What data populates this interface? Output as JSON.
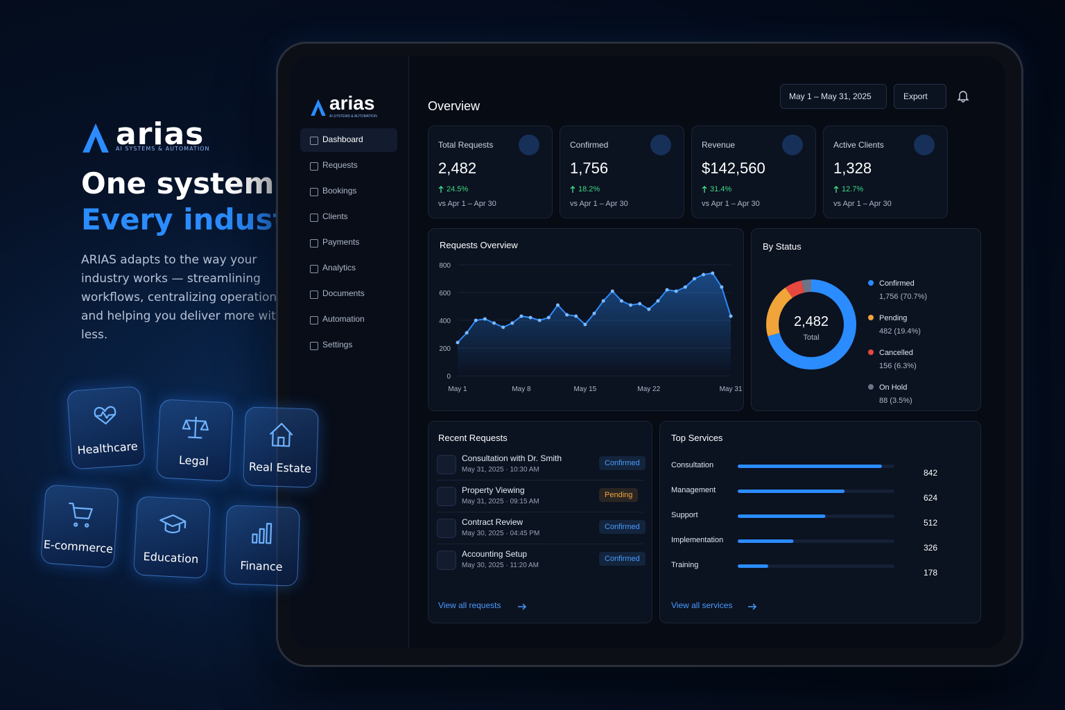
{
  "hero": {
    "logo": "arias",
    "logo_tagline": "AI SYSTEMS & AUTOMATION",
    "headline_1": "One system.",
    "headline_2": "Every industry.",
    "body": "ARIAS adapts to the way your industry works — streamlining workflows, centralizing operations and helping you deliver more with less.",
    "industries": [
      "Healthcare",
      "Legal",
      "Real Estate",
      "E-commerce",
      "Education",
      "Finance"
    ]
  },
  "dashboard": {
    "logo": "arias",
    "logo_tagline": "AI SYSTEMS & AUTOMATION",
    "nav": [
      "Dashboard",
      "Requests",
      "Bookings",
      "Clients",
      "Payments",
      "Analytics",
      "Documents",
      "Automation",
      "Settings"
    ],
    "page_title": "Overview",
    "date_range": "May 1 – May 31, 2025",
    "export": "Export",
    "kpis": [
      {
        "label": "Total Requests",
        "value": "2,482",
        "change": "24.5%",
        "compare": "vs Apr 1 – Apr 30"
      },
      {
        "label": "Confirmed",
        "value": "1,756",
        "change": "18.2%",
        "compare": "vs Apr 1 – Apr 30"
      },
      {
        "label": "Revenue",
        "value": "$142,560",
        "change": "31.4%",
        "compare": "vs Apr 1 – Apr 30"
      },
      {
        "label": "Active Clients",
        "value": "1,328",
        "change": "12.7%",
        "compare": "vs Apr 1 – Apr 30"
      }
    ],
    "requests_chart": {
      "type": "line",
      "title": "Requests Overview",
      "categories": [
        "May 1",
        null,
        null,
        null,
        null,
        null,
        null,
        "May 8",
        null,
        null,
        null,
        null,
        null,
        null,
        "May 15",
        null,
        null,
        null,
        null,
        null,
        null,
        "May 22",
        null,
        null,
        null,
        null,
        null,
        null,
        null,
        null,
        "May 31"
      ],
      "values": [
        240,
        310,
        400,
        410,
        380,
        350,
        380,
        430,
        420,
        400,
        420,
        510,
        440,
        430,
        370,
        450,
        540,
        610,
        540,
        510,
        520,
        480,
        540,
        620,
        610,
        640,
        700,
        730,
        740,
        640,
        430
      ],
      "color": "#2b8cff",
      "ylim": [
        0,
        800
      ],
      "yticks": [
        0,
        200,
        400,
        600,
        800
      ],
      "grid": true
    },
    "status_chart": {
      "type": "donut",
      "title": "By Status",
      "total": "2,482",
      "total_label": "Total",
      "series": [
        {
          "name": "Confirmed",
          "value": 1756,
          "value_label": "1,756 (70.7%)",
          "color": "#2b8cff"
        },
        {
          "name": "Pending",
          "value": 482,
          "value_label": "482 (19.4%)",
          "color": "#f0a43a"
        },
        {
          "name": "Cancelled",
          "value": 156,
          "value_label": "156 (6.3%)",
          "color": "#e5483f"
        },
        {
          "name": "On Hold",
          "value": 88,
          "value_label": "88 (3.5%)",
          "color": "#6b7587"
        }
      ]
    },
    "recent_requests": {
      "title": "Recent Requests",
      "link": "View all requests",
      "items": [
        {
          "title": "Consultation with Dr. Smith",
          "time": "May 31, 2025 · 10:30 AM",
          "status": "Confirmed",
          "status_color": "#4a9bff"
        },
        {
          "title": "Property Viewing",
          "time": "May 31, 2025 · 09:15 AM",
          "status": "Pending",
          "status_color": "#f0a43a"
        },
        {
          "title": "Contract Review",
          "time": "May 30, 2025 · 04:45 PM",
          "status": "Confirmed",
          "status_color": "#4a9bff"
        },
        {
          "title": "Accounting Setup",
          "time": "May 30, 2025 · 11:20 AM",
          "status": "Confirmed",
          "status_color": "#4a9bff"
        }
      ]
    },
    "top_services": {
      "type": "bar",
      "title": "Top Services",
      "link": "View all services",
      "categories": [
        "Consultation",
        "Management",
        "Support",
        "Implementation",
        "Training"
      ],
      "values": [
        842,
        624,
        512,
        326,
        178
      ],
      "color": "#2b8cff"
    }
  }
}
